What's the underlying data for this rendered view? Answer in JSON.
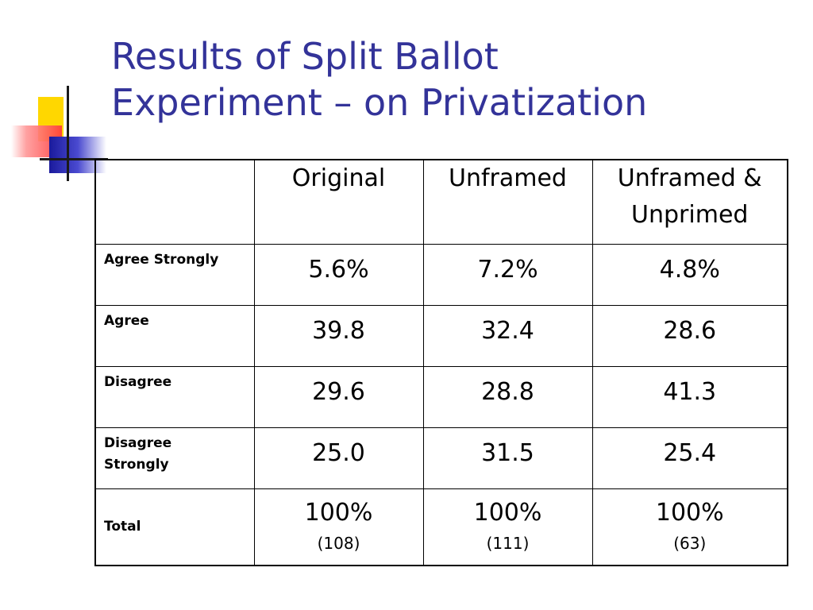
{
  "slide": {
    "title_line1": "Results of Split Ballot",
    "title_line2": "Experiment – on Privatization"
  },
  "colors": {
    "title": "#333399",
    "ornament_yellow": "#ffd700",
    "ornament_red": "#ff3b3b",
    "ornament_blue": "#1a1a9c"
  },
  "table": {
    "columns": [
      "",
      "Original",
      "Unframed",
      "Unframed & Unprimed"
    ],
    "col3_line1": "Unframed &",
    "col3_line2": "Unprimed",
    "rows": [
      {
        "label": "Agree Strongly",
        "values": [
          "5.6%",
          "7.2%",
          "4.8%"
        ]
      },
      {
        "label": "Agree",
        "values": [
          "39.8",
          "32.4",
          "28.6"
        ]
      },
      {
        "label": "Disagree",
        "values": [
          "29.6",
          "28.8",
          "41.3"
        ]
      },
      {
        "label_line1": "Disagree",
        "label_line2": "Strongly",
        "values": [
          "25.0",
          "31.5",
          "25.4"
        ]
      }
    ],
    "total": {
      "label": "Total",
      "values": [
        "100%",
        "100%",
        "100%"
      ],
      "counts": [
        "(108)",
        "(111)",
        "(63)"
      ]
    }
  }
}
